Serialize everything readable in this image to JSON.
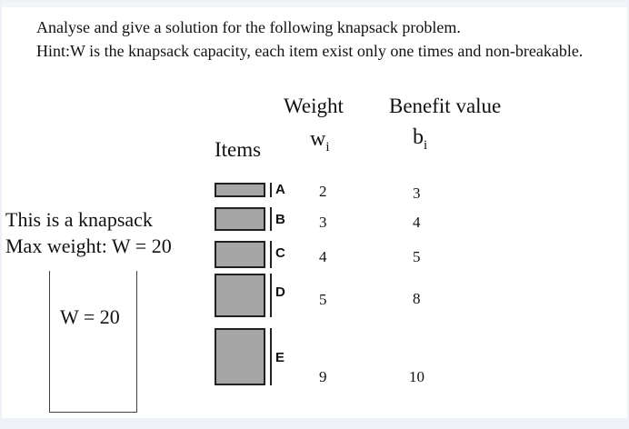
{
  "question": {
    "line1": "Analyse and give a solution for the following knapsack problem.",
    "line2": "Hint:W is the knapsack capacity, each item exist only one times and non-breakable."
  },
  "table": {
    "header_items": "Items",
    "header_weight": "Weight",
    "header_benefit": "Benefit value",
    "weight_symbol": "w",
    "weight_sub": "i",
    "benefit_symbol": "b",
    "benefit_sub": "i"
  },
  "knapsack": {
    "line1": "This is a knapsack",
    "line2": "Max weight: W = 20",
    "capacity_label": "W = 20"
  },
  "items": [
    {
      "letter": "A",
      "weight": "2",
      "benefit": "3"
    },
    {
      "letter": "B",
      "weight": "3",
      "benefit": "4"
    },
    {
      "letter": "C",
      "weight": "4",
      "benefit": "5"
    },
    {
      "letter": "D",
      "weight": "5",
      "benefit": "8"
    },
    {
      "letter": "E",
      "weight": "9",
      "benefit": "10"
    }
  ]
}
